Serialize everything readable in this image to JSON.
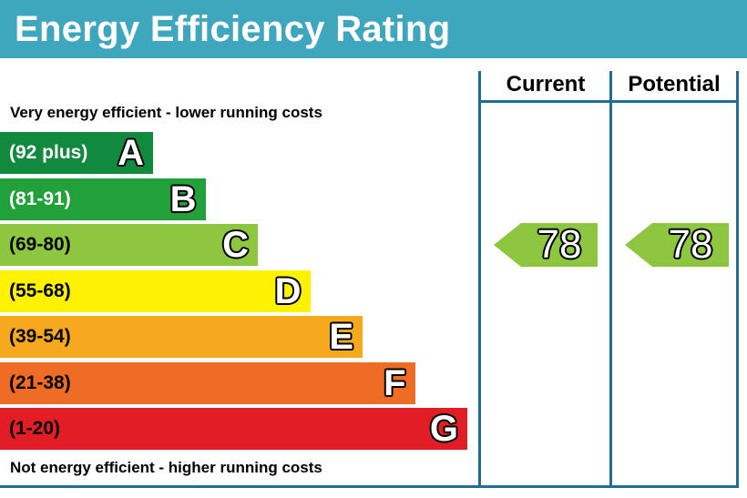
{
  "header": {
    "title": "Energy Efficiency Rating"
  },
  "labels": {
    "top": "Very energy efficient - lower running costs",
    "bottom": "Not energy efficient - higher running costs"
  },
  "columns": {
    "current": "Current",
    "potential": "Potential"
  },
  "chart_data": {
    "type": "bar",
    "categories": [
      "A",
      "B",
      "C",
      "D",
      "E",
      "F",
      "G"
    ],
    "ranges": [
      "(92 plus)",
      "(81-91)",
      "(69-80)",
      "(55-68)",
      "(39-54)",
      "(21-38)",
      "(1-20)"
    ],
    "colors": [
      "#128a3e",
      "#22a13a",
      "#8dc63f",
      "#fff200",
      "#f6a91c",
      "#ee6c24",
      "#e31d25"
    ],
    "range_text_colors": [
      "#ffffff",
      "#ffffff",
      "#000000",
      "#000000",
      "#000000",
      "#000000",
      "#000000"
    ],
    "current": {
      "value": 78,
      "band": "C",
      "color": "#8dc63f"
    },
    "potential": {
      "value": 78,
      "band": "C",
      "color": "#8dc63f"
    }
  }
}
